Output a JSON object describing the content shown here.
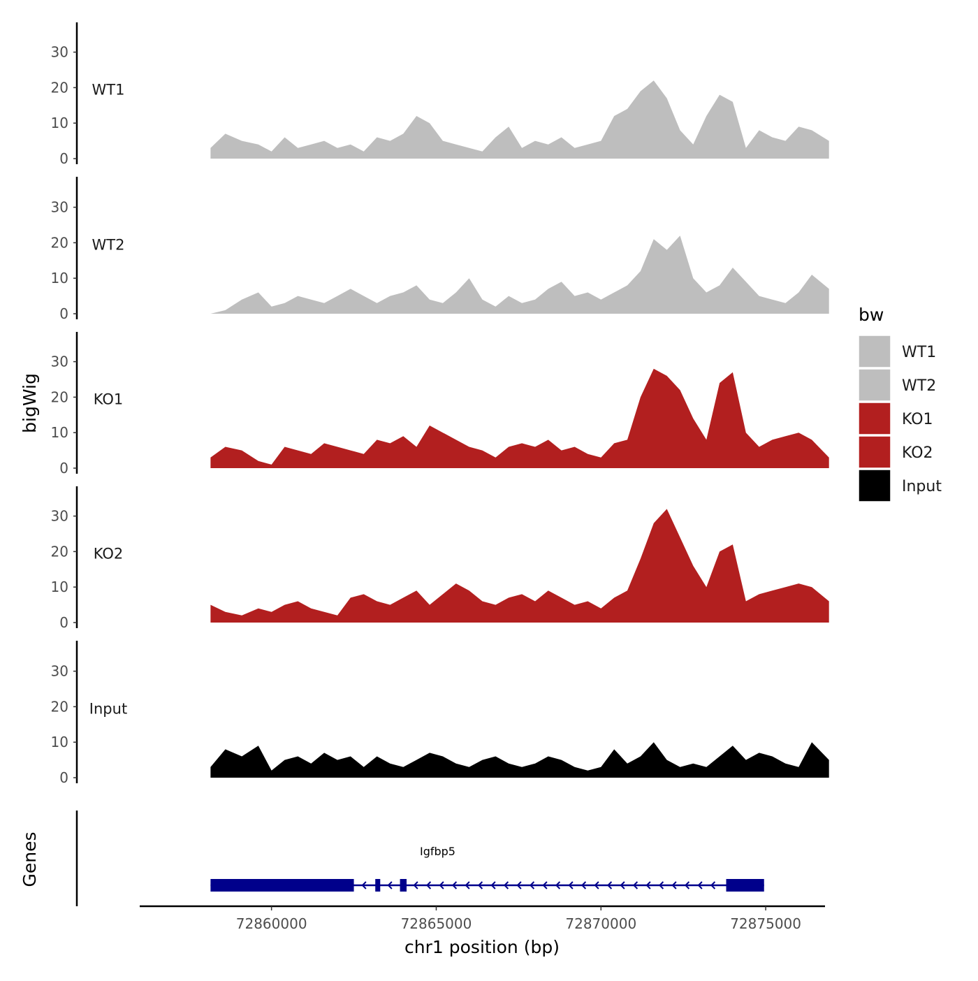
{
  "chart_data": {
    "type": "area",
    "title": "",
    "xlabel": "chr1 position (bp)",
    "ylabel": "bigWig",
    "genes_label": "Genes",
    "xlim": [
      72856000,
      72876800
    ],
    "x_data_range": [
      72858150,
      72876920
    ],
    "x_ticks": [
      72860000,
      72865000,
      72870000,
      72875000
    ],
    "x_tick_labels": [
      "72860000",
      "72865000",
      "72870000",
      "72875000"
    ],
    "ylim": [
      0,
      38
    ],
    "y_ticks": [
      0,
      10,
      20,
      30
    ],
    "y_tick_labels": [
      "0",
      "10",
      "20",
      "30"
    ],
    "legend": {
      "title": "bw",
      "position": "right",
      "entries": [
        {
          "label": "WT1",
          "color": "#bebebe"
        },
        {
          "label": "WT2",
          "color": "#bebebe"
        },
        {
          "label": "KO1",
          "color": "#b21f1f"
        },
        {
          "label": "KO2",
          "color": "#b21f1f"
        },
        {
          "label": "Input",
          "color": "#000000"
        }
      ]
    },
    "series": [
      {
        "name": "WT1",
        "color": "#bebebe",
        "x": [
          72858150,
          72858600,
          72859100,
          72859600,
          72860000,
          72860400,
          72860800,
          72861200,
          72861600,
          72862000,
          72862400,
          72862800,
          72863200,
          72863600,
          72864000,
          72864400,
          72864800,
          72865200,
          72865600,
          72866000,
          72866400,
          72866800,
          72867200,
          72867600,
          72868000,
          72868400,
          72868800,
          72869200,
          72869600,
          72870000,
          72870400,
          72870800,
          72871200,
          72871600,
          72872000,
          72872400,
          72872800,
          72873200,
          72873600,
          72874000,
          72874400,
          72874800,
          72875200,
          72875600,
          72876000,
          72876400,
          72876920
        ],
        "values": [
          3,
          7,
          5,
          4,
          2,
          6,
          3,
          4,
          5,
          3,
          4,
          2,
          6,
          5,
          7,
          12,
          10,
          5,
          4,
          3,
          2,
          6,
          9,
          3,
          5,
          4,
          6,
          3,
          4,
          5,
          12,
          14,
          19,
          22,
          17,
          8,
          4,
          12,
          18,
          16,
          3,
          8,
          6,
          5,
          9,
          8,
          5
        ]
      },
      {
        "name": "WT2",
        "color": "#bebebe",
        "x": [
          72858150,
          72858600,
          72859100,
          72859600,
          72860000,
          72860400,
          72860800,
          72861200,
          72861600,
          72862000,
          72862400,
          72862800,
          72863200,
          72863600,
          72864000,
          72864400,
          72864800,
          72865200,
          72865600,
          72866000,
          72866400,
          72866800,
          72867200,
          72867600,
          72868000,
          72868400,
          72868800,
          72869200,
          72869600,
          72870000,
          72870400,
          72870800,
          72871200,
          72871600,
          72872000,
          72872400,
          72872800,
          72873200,
          72873600,
          72874000,
          72874400,
          72874800,
          72875200,
          72875600,
          72876000,
          72876400,
          72876920
        ],
        "values": [
          0,
          1,
          4,
          6,
          2,
          3,
          5,
          4,
          3,
          5,
          7,
          5,
          3,
          5,
          6,
          8,
          4,
          3,
          6,
          10,
          4,
          2,
          5,
          3,
          4,
          7,
          9,
          5,
          6,
          4,
          6,
          8,
          12,
          21,
          18,
          22,
          10,
          6,
          8,
          13,
          9,
          5,
          4,
          3,
          6,
          11,
          7
        ]
      },
      {
        "name": "KO1",
        "color": "#b21f1f",
        "x": [
          72858150,
          72858600,
          72859100,
          72859600,
          72860000,
          72860400,
          72860800,
          72861200,
          72861600,
          72862000,
          72862400,
          72862800,
          72863200,
          72863600,
          72864000,
          72864400,
          72864800,
          72865200,
          72865600,
          72866000,
          72866400,
          72866800,
          72867200,
          72867600,
          72868000,
          72868400,
          72868800,
          72869200,
          72869600,
          72870000,
          72870400,
          72870800,
          72871200,
          72871600,
          72872000,
          72872400,
          72872800,
          72873200,
          72873600,
          72874000,
          72874400,
          72874800,
          72875200,
          72875600,
          72876000,
          72876400,
          72876920
        ],
        "values": [
          3,
          6,
          5,
          2,
          1,
          6,
          5,
          4,
          7,
          6,
          5,
          4,
          8,
          7,
          9,
          6,
          12,
          10,
          8,
          6,
          5,
          3,
          6,
          7,
          6,
          8,
          5,
          6,
          4,
          3,
          7,
          8,
          20,
          28,
          26,
          22,
          14,
          8,
          24,
          27,
          10,
          6,
          8,
          9,
          10,
          8,
          3
        ]
      },
      {
        "name": "KO2",
        "color": "#b21f1f",
        "x": [
          72858150,
          72858600,
          72859100,
          72859600,
          72860000,
          72860400,
          72860800,
          72861200,
          72861600,
          72862000,
          72862400,
          72862800,
          72863200,
          72863600,
          72864000,
          72864400,
          72864800,
          72865200,
          72865600,
          72866000,
          72866400,
          72866800,
          72867200,
          72867600,
          72868000,
          72868400,
          72868800,
          72869200,
          72869600,
          72870000,
          72870400,
          72870800,
          72871200,
          72871600,
          72872000,
          72872400,
          72872800,
          72873200,
          72873600,
          72874000,
          72874400,
          72874800,
          72875200,
          72875600,
          72876000,
          72876400,
          72876920
        ],
        "values": [
          5,
          3,
          2,
          4,
          3,
          5,
          6,
          4,
          3,
          2,
          7,
          8,
          6,
          5,
          7,
          9,
          5,
          8,
          11,
          9,
          6,
          5,
          7,
          8,
          6,
          9,
          7,
          5,
          6,
          4,
          7,
          9,
          18,
          28,
          32,
          24,
          16,
          10,
          20,
          22,
          6,
          8,
          9,
          10,
          11,
          10,
          6
        ]
      },
      {
        "name": "Input",
        "color": "#000000",
        "x": [
          72858150,
          72858600,
          72859100,
          72859600,
          72860000,
          72860400,
          72860800,
          72861200,
          72861600,
          72862000,
          72862400,
          72862800,
          72863200,
          72863600,
          72864000,
          72864400,
          72864800,
          72865200,
          72865600,
          72866000,
          72866400,
          72866800,
          72867200,
          72867600,
          72868000,
          72868400,
          72868800,
          72869200,
          72869600,
          72870000,
          72870400,
          72870800,
          72871200,
          72871600,
          72872000,
          72872400,
          72872800,
          72873200,
          72873600,
          72874000,
          72874400,
          72874800,
          72875200,
          72875600,
          72876000,
          72876400,
          72876920
        ],
        "values": [
          3,
          8,
          6,
          9,
          2,
          5,
          6,
          4,
          7,
          5,
          6,
          3,
          6,
          4,
          3,
          5,
          7,
          6,
          4,
          3,
          5,
          6,
          4,
          3,
          4,
          6,
          5,
          3,
          2,
          3,
          8,
          4,
          6,
          10,
          5,
          3,
          4,
          3,
          6,
          9,
          5,
          7,
          6,
          4,
          3,
          10,
          5
        ]
      }
    ],
    "gene": {
      "name": "Igfbp5",
      "strand": "-",
      "start": 72858150,
      "end": 72874950,
      "exons": [
        {
          "start": 72858150,
          "end": 72862500
        },
        {
          "start": 72863150,
          "end": 72863300
        },
        {
          "start": 72863900,
          "end": 72864100
        },
        {
          "start": 72873800,
          "end": 72874950
        }
      ],
      "color": "#00008b"
    }
  }
}
